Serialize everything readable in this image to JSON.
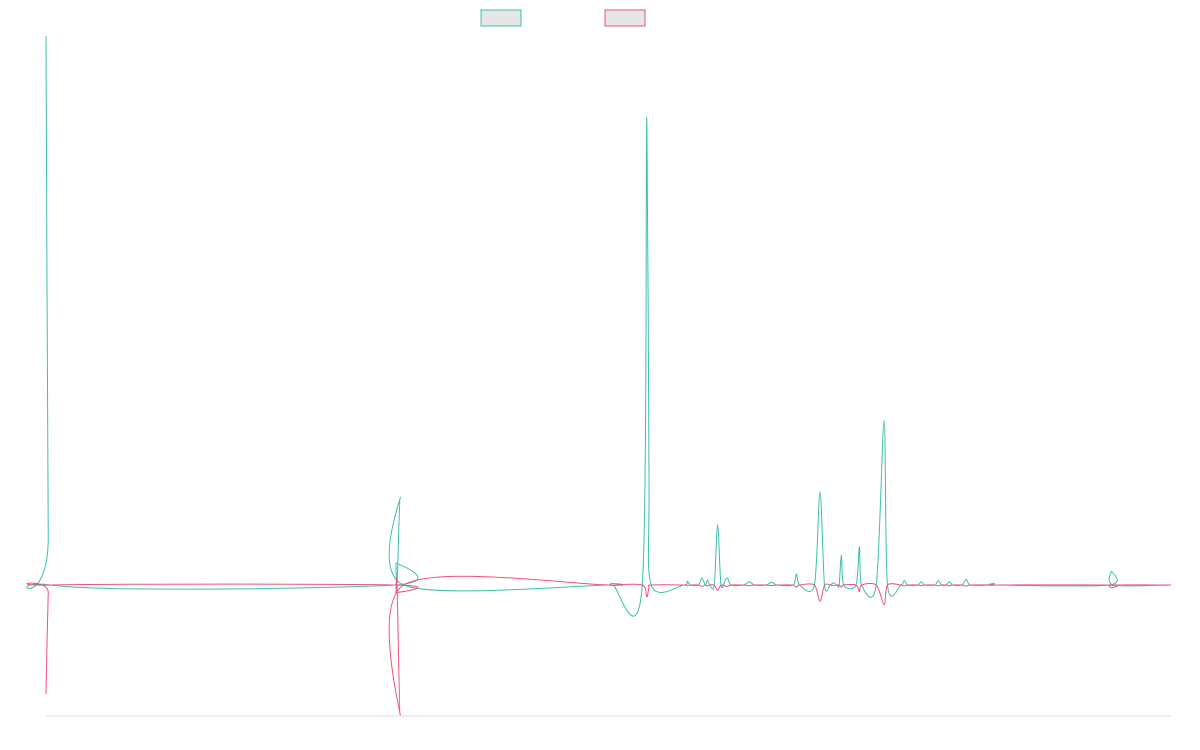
{
  "chart_data": {
    "type": "line",
    "title": "",
    "xlabel": "",
    "ylabel": "",
    "xlim": [
      0,
      1000
    ],
    "ylim": [
      -1.2,
      1.0
    ],
    "grid": false,
    "legend_position": "top-center",
    "series": [
      {
        "color": "#3cbfae",
        "fill": "#e6e6e6",
        "points": [
          [
            0,
            1.0
          ],
          [
            2,
            0.09
          ],
          [
            4,
            0.0
          ],
          [
            310,
            0.0
          ],
          [
            311,
            0.04
          ],
          [
            312,
            0.0
          ],
          [
            315,
            0.16
          ],
          [
            318,
            0.0
          ],
          [
            500,
            0.0
          ],
          [
            502,
            0.003
          ],
          [
            504,
            0.0
          ],
          [
            530,
            0.0
          ],
          [
            534,
            0.85
          ],
          [
            536,
            0.2
          ],
          [
            538,
            0.0
          ],
          [
            567,
            0.0
          ],
          [
            570,
            0.007
          ],
          [
            573,
            0.0
          ],
          [
            580,
            0.0
          ],
          [
            583,
            0.013
          ],
          [
            586,
            0.0
          ],
          [
            588,
            0.009
          ],
          [
            590,
            0.0
          ],
          [
            594,
            0.0
          ],
          [
            597,
            0.11
          ],
          [
            600,
            0.0
          ],
          [
            604,
            0.01
          ],
          [
            606,
            0.012
          ],
          [
            609,
            0.0
          ],
          [
            620,
            0.0
          ],
          [
            625,
            0.006
          ],
          [
            630,
            0.0
          ],
          [
            640,
            0.0
          ],
          [
            645,
            0.005
          ],
          [
            650,
            0.0
          ],
          [
            664,
            0.0
          ],
          [
            667,
            0.02
          ],
          [
            670,
            0.0
          ],
          [
            683,
            0.0
          ],
          [
            688,
            0.17
          ],
          [
            692,
            0.0
          ],
          [
            697,
            0.0
          ],
          [
            700,
            0.004
          ],
          [
            703,
            0.0
          ],
          [
            705,
            0.0
          ],
          [
            707,
            0.055
          ],
          [
            709,
            0.0
          ],
          [
            720,
            0.0
          ],
          [
            723,
            0.07
          ],
          [
            725,
            0.0
          ],
          [
            738,
            0.0
          ],
          [
            745,
            0.3
          ],
          [
            748,
            0.0
          ],
          [
            760,
            0.0
          ],
          [
            763,
            0.008
          ],
          [
            766,
            0.0
          ],
          [
            775,
            0.0
          ],
          [
            778,
            0.006
          ],
          [
            781,
            0.0
          ],
          [
            790,
            0.0
          ],
          [
            793,
            0.008
          ],
          [
            796,
            0.0
          ],
          [
            800,
            0.0
          ],
          [
            803,
            0.006
          ],
          [
            806,
            0.0
          ],
          [
            814,
            0.0
          ],
          [
            818,
            0.01
          ],
          [
            822,
            0.0
          ],
          [
            840,
            0.0
          ],
          [
            843,
            0.003
          ],
          [
            846,
            0.0
          ],
          [
            945,
            0.0
          ],
          [
            947,
            0.025
          ],
          [
            949,
            0.0
          ],
          [
            1000,
            0.0
          ]
        ]
      },
      {
        "color": "#f0517a",
        "fill": "#e6e6e6",
        "points": [
          [
            0,
            -1.0
          ],
          [
            2,
            -0.07
          ],
          [
            4,
            0.0
          ],
          [
            310,
            0.0
          ],
          [
            311,
            -0.07
          ],
          [
            312,
            0.0
          ],
          [
            315,
            -1.2
          ],
          [
            318,
            0.0
          ],
          [
            500,
            0.0
          ],
          [
            502,
            -0.003
          ],
          [
            504,
            0.0
          ],
          [
            530,
            0.0
          ],
          [
            534,
            -0.11
          ],
          [
            536,
            -0.02
          ],
          [
            538,
            0.0
          ],
          [
            567,
            0.0
          ],
          [
            570,
            -0.007
          ],
          [
            573,
            0.0
          ],
          [
            580,
            0.0
          ],
          [
            583,
            -0.013
          ],
          [
            586,
            0.0
          ],
          [
            588,
            -0.009
          ],
          [
            590,
            0.0
          ],
          [
            594,
            0.0
          ],
          [
            597,
            -0.05
          ],
          [
            600,
            0.0
          ],
          [
            604,
            -0.01
          ],
          [
            606,
            -0.012
          ],
          [
            609,
            0.0
          ],
          [
            620,
            0.0
          ],
          [
            625,
            -0.006
          ],
          [
            630,
            0.0
          ],
          [
            640,
            0.0
          ],
          [
            645,
            -0.005
          ],
          [
            650,
            0.0
          ],
          [
            664,
            0.0
          ],
          [
            667,
            -0.02
          ],
          [
            670,
            0.0
          ],
          [
            683,
            0.0
          ],
          [
            688,
            -0.15
          ],
          [
            692,
            0.0
          ],
          [
            697,
            0.0
          ],
          [
            700,
            -0.004
          ],
          [
            703,
            0.0
          ],
          [
            705,
            0.0
          ],
          [
            707,
            -0.02
          ],
          [
            709,
            0.0
          ],
          [
            720,
            0.0
          ],
          [
            723,
            -0.06
          ],
          [
            725,
            0.0
          ],
          [
            738,
            0.0
          ],
          [
            745,
            -0.18
          ],
          [
            748,
            0.0
          ],
          [
            760,
            0.0
          ],
          [
            763,
            -0.008
          ],
          [
            766,
            0.0
          ],
          [
            775,
            0.0
          ],
          [
            778,
            -0.006
          ],
          [
            781,
            0.0
          ],
          [
            790,
            0.0
          ],
          [
            793,
            -0.008
          ],
          [
            796,
            0.0
          ],
          [
            800,
            0.0
          ],
          [
            803,
            -0.006
          ],
          [
            806,
            0.0
          ],
          [
            814,
            0.0
          ],
          [
            818,
            -0.01
          ],
          [
            822,
            0.0
          ],
          [
            840,
            0.0
          ],
          [
            843,
            -0.003
          ],
          [
            846,
            0.0
          ],
          [
            945,
            0.0
          ],
          [
            947,
            -0.025
          ],
          [
            949,
            0.0
          ],
          [
            1000,
            0.0
          ]
        ]
      }
    ]
  }
}
